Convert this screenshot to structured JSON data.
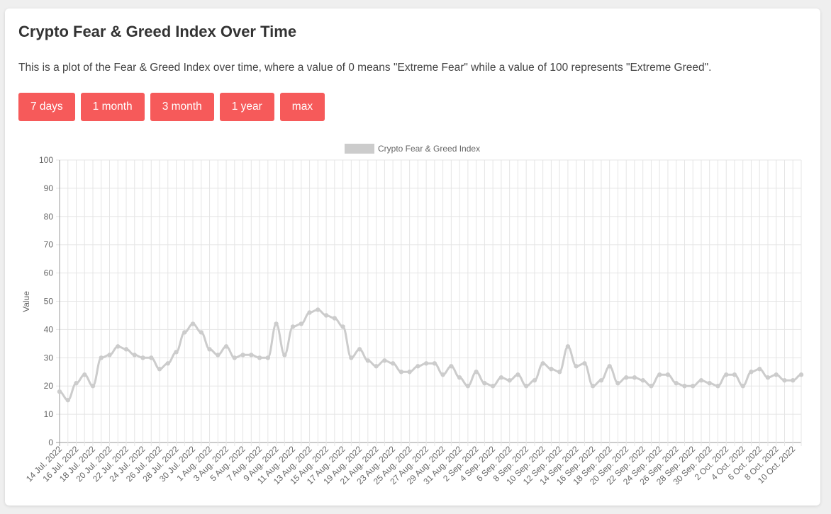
{
  "header": {
    "title": "Crypto Fear & Greed Index Over Time",
    "description": "This is a plot of the Fear & Greed Index over time, where a value of 0 means \"Extreme Fear\" while a value of 100 represents \"Extreme Greed\"."
  },
  "buttons": [
    "7 days",
    "1 month",
    "3 month",
    "1 year",
    "max"
  ],
  "chart_data": {
    "type": "line",
    "legend": "Crypto Fear & Greed Index",
    "legend_position": "top-center",
    "ylabel": "Value",
    "ylim": [
      0,
      100
    ],
    "y_ticks": [
      0,
      10,
      20,
      30,
      40,
      50,
      60,
      70,
      80,
      90,
      100
    ],
    "x_start": "14 Jul. 2022",
    "x_end": "11 Oct. 2022",
    "x_tick_labels": [
      "14 Jul. 2022",
      "16 Jul. 2022",
      "18 Jul. 2022",
      "20 Jul. 2022",
      "22 Jul. 2022",
      "24 Jul. 2022",
      "26 Jul. 2022",
      "28 Jul. 2022",
      "30 Jul. 2022",
      "1 Aug. 2022",
      "3 Aug. 2022",
      "5 Aug. 2022",
      "7 Aug. 2022",
      "9 Aug. 2022",
      "11 Aug. 2022",
      "13 Aug. 2022",
      "15 Aug. 2022",
      "17 Aug. 2022",
      "19 Aug. 2022",
      "21 Aug. 2022",
      "23 Aug. 2022",
      "25 Aug. 2022",
      "27 Aug. 2022",
      "29 Aug. 2022",
      "31 Aug. 2022",
      "2 Sep. 2022",
      "4 Sep. 2022",
      "6 Sep. 2022",
      "8 Sep. 2022",
      "10 Sep. 2022",
      "12 Sep. 2022",
      "14 Sep. 2022",
      "16 Sep. 2022",
      "18 Sep. 2022",
      "20 Sep. 2022",
      "22 Sep. 2022",
      "24 Sep. 2022",
      "26 Sep. 2022",
      "28 Sep. 2022",
      "30 Sep. 2022",
      "2 Oct. 2022",
      "4 Oct. 2022",
      "6 Oct. 2022",
      "8 Oct. 2022",
      "10 Oct. 2022"
    ],
    "values": [
      18,
      15,
      21,
      24,
      20,
      30,
      31,
      34,
      33,
      31,
      30,
      30,
      26,
      28,
      32,
      39,
      42,
      39,
      33,
      31,
      34,
      30,
      31,
      31,
      30,
      30,
      42,
      31,
      41,
      42,
      46,
      47,
      45,
      44,
      41,
      30,
      33,
      29,
      27,
      29,
      28,
      25,
      25,
      27,
      28,
      28,
      24,
      27,
      23,
      20,
      25,
      21,
      20,
      23,
      22,
      24,
      20,
      22,
      28,
      26,
      25,
      34,
      27,
      28,
      20,
      22,
      27,
      21,
      23,
      23,
      22,
      20,
      24,
      24,
      21,
      20,
      20,
      22,
      21,
      20,
      24,
      24,
      20,
      25,
      26,
      23,
      24,
      22,
      22,
      24
    ],
    "grid": true,
    "colors": {
      "line": "#cccccc",
      "grid": "#e5e5e5",
      "axis": "#999999",
      "text": "#666666"
    }
  }
}
